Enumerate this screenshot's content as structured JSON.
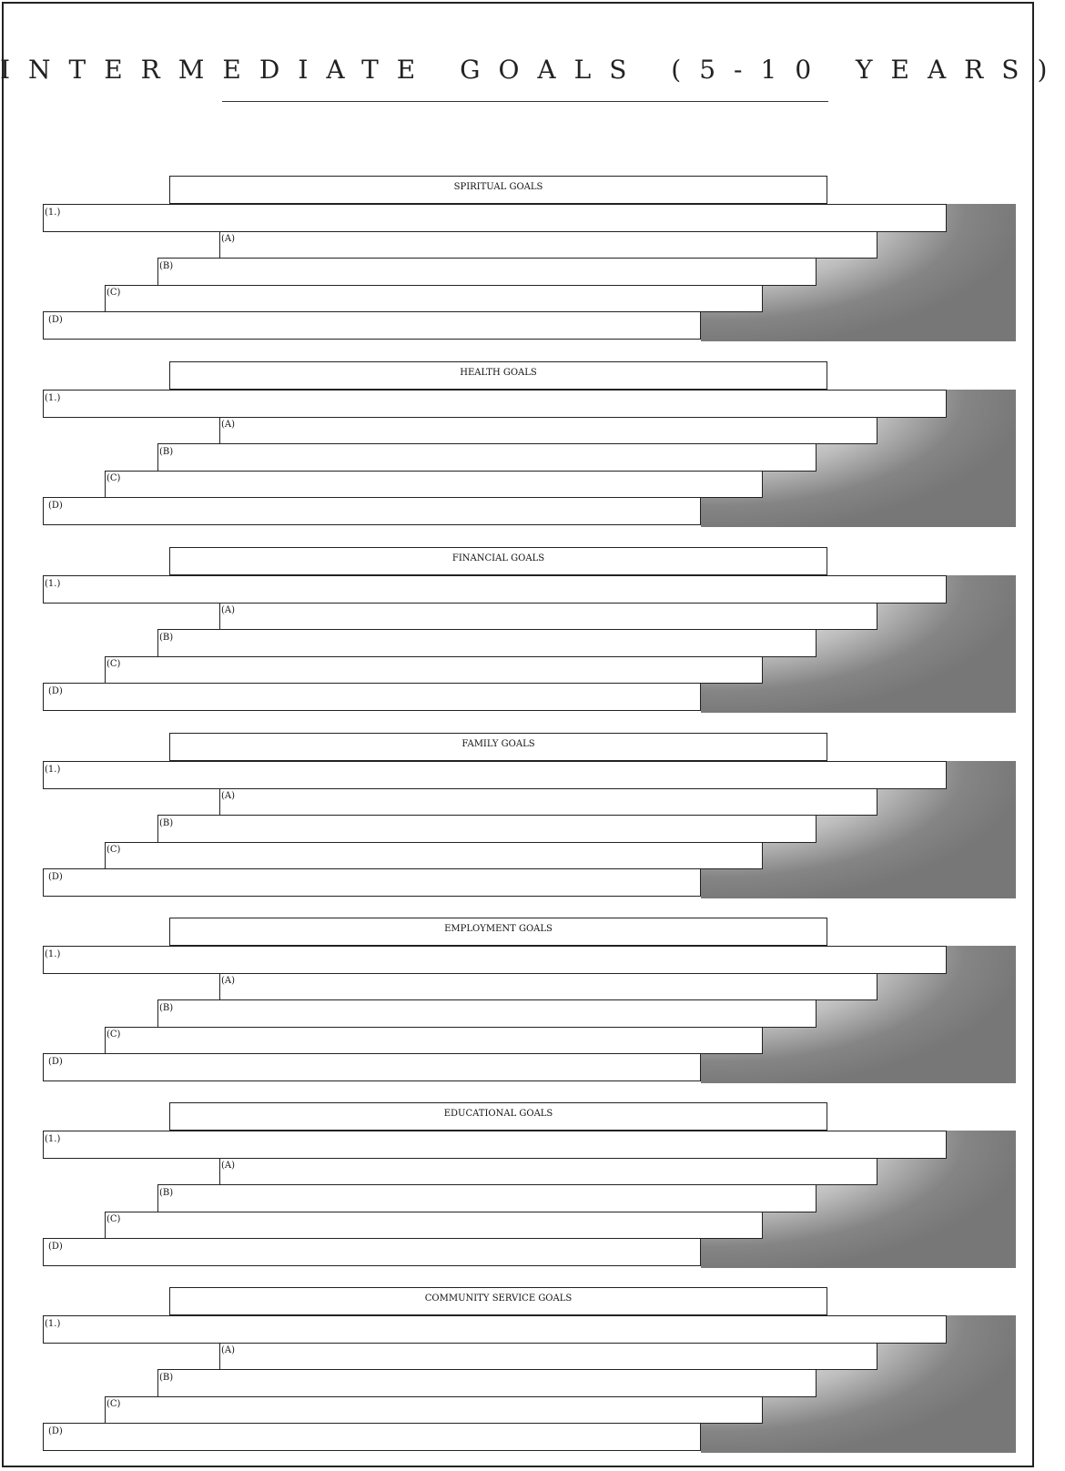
{
  "page": {
    "title": "INTERMEDIATE GOALS (5-10 YEARS)"
  },
  "sections": [
    {
      "title": "SPIRITUAL GOALS",
      "items": [
        {
          "label": "(1.)",
          "value": ""
        },
        {
          "label": "(A)",
          "value": ""
        },
        {
          "label": "(B)",
          "value": ""
        },
        {
          "label": "(C)",
          "value": ""
        },
        {
          "label": "(D)",
          "value": ""
        }
      ]
    },
    {
      "title": "HEALTH GOALS",
      "items": [
        {
          "label": "(1.)",
          "value": ""
        },
        {
          "label": "(A)",
          "value": ""
        },
        {
          "label": "(B)",
          "value": ""
        },
        {
          "label": "(C)",
          "value": ""
        },
        {
          "label": "(D)",
          "value": ""
        }
      ]
    },
    {
      "title": "FINANCIAL GOALS",
      "items": [
        {
          "label": "(1.)",
          "value": ""
        },
        {
          "label": "(A)",
          "value": ""
        },
        {
          "label": "(B)",
          "value": ""
        },
        {
          "label": "(C)",
          "value": ""
        },
        {
          "label": "(D)",
          "value": ""
        }
      ]
    },
    {
      "title": "FAMILY GOALS",
      "items": [
        {
          "label": "(1.)",
          "value": ""
        },
        {
          "label": "(A)",
          "value": ""
        },
        {
          "label": "(B)",
          "value": ""
        },
        {
          "label": "(C)",
          "value": ""
        },
        {
          "label": "(D)",
          "value": ""
        }
      ]
    },
    {
      "title": "EMPLOYMENT GOALS",
      "items": [
        {
          "label": "(1.)",
          "value": ""
        },
        {
          "label": "(A)",
          "value": ""
        },
        {
          "label": "(B)",
          "value": ""
        },
        {
          "label": "(C)",
          "value": ""
        },
        {
          "label": "(D)",
          "value": ""
        }
      ]
    },
    {
      "title": "EDUCATIONAL GOALS",
      "items": [
        {
          "label": "(1.)",
          "value": ""
        },
        {
          "label": "(A)",
          "value": ""
        },
        {
          "label": "(B)",
          "value": ""
        },
        {
          "label": "(C)",
          "value": ""
        },
        {
          "label": "(D)",
          "value": ""
        }
      ]
    },
    {
      "title": "COMMUNITY SERVICE GOALS",
      "items": [
        {
          "label": "(1.)",
          "value": ""
        },
        {
          "label": "(A)",
          "value": ""
        },
        {
          "label": "(B)",
          "value": ""
        },
        {
          "label": "(C)",
          "value": ""
        },
        {
          "label": "(D)",
          "value": ""
        }
      ]
    }
  ]
}
